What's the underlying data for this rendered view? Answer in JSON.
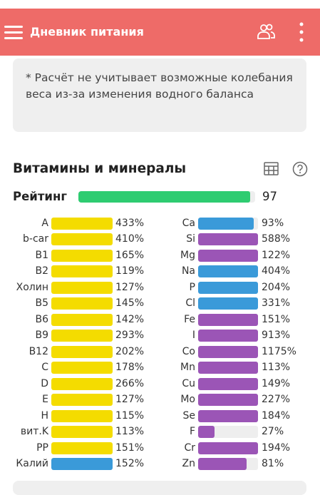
{
  "header": {
    "title": "Дневник питания"
  },
  "note": "* Расчёт не учитывает возможные колебания веса из-за изменения водного баланса",
  "section": {
    "title": "Витамины и минералы",
    "rating_label": "Рейтинг",
    "rating": 97,
    "rating_color": "#2ecc71"
  },
  "left": [
    {
      "name": "A",
      "value": 433,
      "label": "433%",
      "color": "#f4dc00"
    },
    {
      "name": "b-car",
      "value": 410,
      "label": "410%",
      "color": "#f4dc00"
    },
    {
      "name": "B1",
      "value": 165,
      "label": "165%",
      "color": "#f4dc00"
    },
    {
      "name": "B2",
      "value": 119,
      "label": "119%",
      "color": "#f4dc00"
    },
    {
      "name": "Холин",
      "value": 127,
      "label": "127%",
      "color": "#f4dc00"
    },
    {
      "name": "B5",
      "value": 145,
      "label": "145%",
      "color": "#f4dc00"
    },
    {
      "name": "B6",
      "value": 142,
      "label": "142%",
      "color": "#f4dc00"
    },
    {
      "name": "B9",
      "value": 293,
      "label": "293%",
      "color": "#f4dc00"
    },
    {
      "name": "B12",
      "value": 202,
      "label": "202%",
      "color": "#f4dc00"
    },
    {
      "name": "C",
      "value": 178,
      "label": "178%",
      "color": "#f4dc00"
    },
    {
      "name": "D",
      "value": 266,
      "label": "266%",
      "color": "#f4dc00"
    },
    {
      "name": "E",
      "value": 127,
      "label": "127%",
      "color": "#f4dc00"
    },
    {
      "name": "H",
      "value": 115,
      "label": "115%",
      "color": "#f4dc00"
    },
    {
      "name": "вит.K",
      "value": 113,
      "label": "113%",
      "color": "#f4dc00"
    },
    {
      "name": "PP",
      "value": 151,
      "label": "151%",
      "color": "#f4dc00"
    },
    {
      "name": "Калий",
      "value": 152,
      "label": "152%",
      "color": "#3a9ad9"
    }
  ],
  "right": [
    {
      "name": "Ca",
      "value": 93,
      "label": "93%",
      "color": "#3a9ad9"
    },
    {
      "name": "Si",
      "value": 588,
      "label": "588%",
      "color": "#9b55b6"
    },
    {
      "name": "Mg",
      "value": 122,
      "label": "122%",
      "color": "#9b55b6"
    },
    {
      "name": "Na",
      "value": 404,
      "label": "404%",
      "color": "#3a9ad9"
    },
    {
      "name": "P",
      "value": 204,
      "label": "204%",
      "color": "#3a9ad9"
    },
    {
      "name": "Cl",
      "value": 331,
      "label": "331%",
      "color": "#3a9ad9"
    },
    {
      "name": "Fe",
      "value": 151,
      "label": "151%",
      "color": "#9b55b6"
    },
    {
      "name": "I",
      "value": 913,
      "label": "913%",
      "color": "#9b55b6"
    },
    {
      "name": "Co",
      "value": 1175,
      "label": "1175%",
      "color": "#9b55b6"
    },
    {
      "name": "Mn",
      "value": 113,
      "label": "113%",
      "color": "#9b55b6"
    },
    {
      "name": "Cu",
      "value": 149,
      "label": "149%",
      "color": "#9b55b6"
    },
    {
      "name": "Mo",
      "value": 227,
      "label": "227%",
      "color": "#9b55b6"
    },
    {
      "name": "Se",
      "value": 184,
      "label": "184%",
      "color": "#9b55b6"
    },
    {
      "name": "F",
      "value": 27,
      "label": "27%",
      "color": "#9b55b6"
    },
    {
      "name": "Cr",
      "value": 194,
      "label": "194%",
      "color": "#9b55b6"
    },
    {
      "name": "Zn",
      "value": 81,
      "label": "81%",
      "color": "#9b55b6"
    }
  ]
}
